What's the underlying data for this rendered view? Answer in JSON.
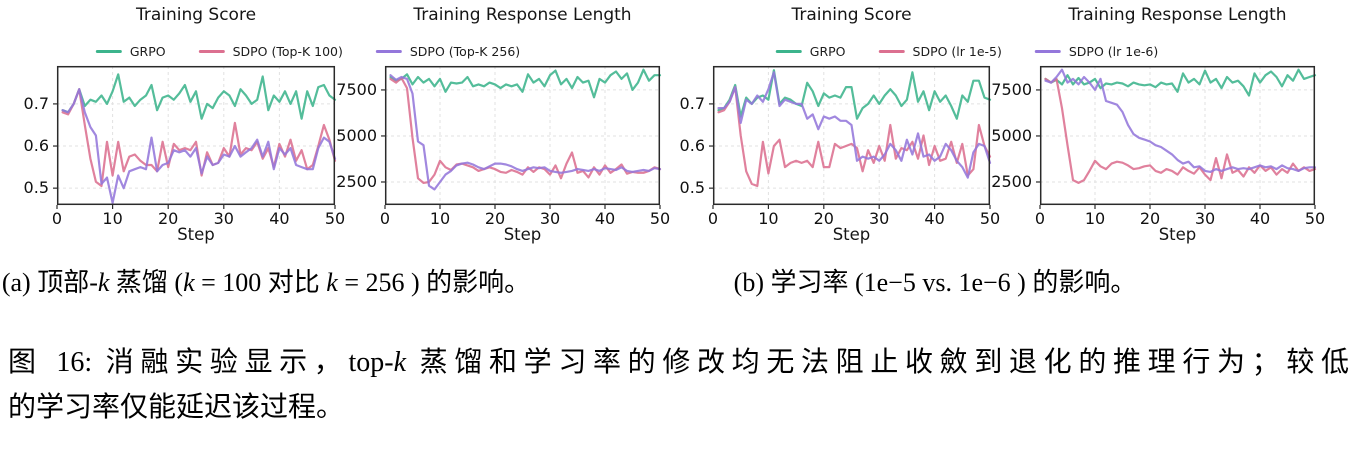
{
  "colors": {
    "grpo": "#3cb48c",
    "pink": "#dc7090",
    "purple": "#9477db",
    "grid": "#e2e2e2",
    "axis": "#2a2a2a"
  },
  "legends": [
    {
      "items": [
        {
          "label": "GRPO",
          "color": "grpo"
        },
        {
          "label": "SDPO (Top-K 100)",
          "color": "pink"
        },
        {
          "label": "SDPO (Top-K 256)",
          "color": "purple"
        }
      ]
    },
    {
      "items": [
        {
          "label": "GRPO",
          "color": "grpo"
        },
        {
          "label": "SDPO (lr 1e-5)",
          "color": "pink"
        },
        {
          "label": "SDPO (lr 1e-6)",
          "color": "purple"
        }
      ]
    }
  ],
  "chart_data": [
    {
      "type": "line",
      "title": "Training Score",
      "xlabel": "Step",
      "xlim": [
        0,
        50
      ],
      "ylim": [
        0.46,
        0.79
      ],
      "xticks": [
        0,
        10,
        20,
        30,
        40,
        50
      ],
      "yticks": [
        0.5,
        0.6,
        0.7
      ],
      "x_start": 1,
      "series": [
        {
          "name": "GRPO",
          "color": "grpo",
          "values": [
            0.685,
            0.68,
            0.7,
            0.735,
            0.695,
            0.71,
            0.705,
            0.72,
            0.7,
            0.73,
            0.77,
            0.705,
            0.715,
            0.695,
            0.71,
            0.72,
            0.745,
            0.685,
            0.715,
            0.72,
            0.71,
            0.725,
            0.745,
            0.705,
            0.73,
            0.665,
            0.7,
            0.69,
            0.715,
            0.73,
            0.72,
            0.695,
            0.735,
            0.72,
            0.7,
            0.71,
            0.765,
            0.685,
            0.72,
            0.705,
            0.73,
            0.7,
            0.73,
            0.665,
            0.73,
            0.695,
            0.74,
            0.745,
            0.72,
            0.71
          ]
        },
        {
          "name": "SDPO (Top-K 100)",
          "color": "pink",
          "values": [
            0.68,
            0.675,
            0.7,
            0.735,
            0.65,
            0.57,
            0.515,
            0.505,
            0.61,
            0.53,
            0.61,
            0.54,
            0.575,
            0.58,
            0.565,
            0.555,
            0.555,
            0.54,
            0.61,
            0.55,
            0.605,
            0.59,
            0.595,
            0.59,
            0.61,
            0.53,
            0.585,
            0.555,
            0.56,
            0.595,
            0.575,
            0.655,
            0.58,
            0.595,
            0.59,
            0.61,
            0.57,
            0.595,
            0.55,
            0.605,
            0.575,
            0.615,
            0.565,
            0.59,
            0.545,
            0.555,
            0.6,
            0.65,
            0.615,
            0.565
          ]
        },
        {
          "name": "SDPO (Top-K 256)",
          "color": "purple",
          "values": [
            0.685,
            0.68,
            0.7,
            0.735,
            0.68,
            0.645,
            0.625,
            0.51,
            0.525,
            0.465,
            0.53,
            0.5,
            0.54,
            0.545,
            0.55,
            0.545,
            0.62,
            0.54,
            0.555,
            0.56,
            0.59,
            0.585,
            0.59,
            0.575,
            0.595,
            0.535,
            0.575,
            0.555,
            0.56,
            0.58,
            0.575,
            0.6,
            0.575,
            0.585,
            0.595,
            0.615,
            0.575,
            0.61,
            0.545,
            0.595,
            0.58,
            0.595,
            0.555,
            0.55,
            0.545,
            0.545,
            0.595,
            0.62,
            0.61,
            0.57
          ]
        }
      ]
    },
    {
      "type": "line",
      "title": "Training Response Length",
      "xlabel": "Step",
      "xlim": [
        0,
        50
      ],
      "ylim": [
        1250,
        8800
      ],
      "xticks": [
        0,
        10,
        20,
        30,
        40,
        50
      ],
      "yticks": [
        2500,
        5000,
        7500
      ],
      "x_start": 1,
      "series": [
        {
          "name": "GRPO",
          "color": "grpo",
          "values": [
            8200,
            8000,
            8100,
            8350,
            7800,
            8200,
            7900,
            8100,
            7700,
            8100,
            7400,
            7900,
            7850,
            7900,
            8200,
            7700,
            7800,
            7700,
            7900,
            7800,
            7600,
            7800,
            7700,
            7800,
            7400,
            8350,
            7900,
            8100,
            7700,
            8300,
            8550,
            7800,
            8100,
            7600,
            8200,
            7900,
            8000,
            7100,
            8100,
            7900,
            8300,
            8500,
            8100,
            8400,
            7500,
            7900,
            8600,
            8000,
            8300,
            8300
          ]
        },
        {
          "name": "SDPO (Top-K 100)",
          "color": "pink",
          "values": [
            8100,
            7900,
            8150,
            7600,
            4900,
            2700,
            2450,
            2500,
            2900,
            3650,
            3300,
            3150,
            3450,
            3500,
            3400,
            3300,
            3100,
            3200,
            3300,
            3200,
            3050,
            3000,
            3150,
            3050,
            2900,
            3300,
            3050,
            3300,
            3200,
            2900,
            3400,
            2700,
            3500,
            4100,
            3000,
            3100,
            2750,
            3300,
            2900,
            3400,
            3000,
            3200,
            3450,
            2950,
            3050,
            3000,
            3000,
            3100,
            3300,
            3200
          ]
        },
        {
          "name": "SDPO (Top-K 256)",
          "color": "purple",
          "values": [
            8300,
            8050,
            8200,
            8100,
            7300,
            4700,
            4500,
            2300,
            2100,
            2500,
            2900,
            3100,
            3400,
            3500,
            3550,
            3450,
            3300,
            3200,
            3350,
            3500,
            3500,
            3450,
            3350,
            3200,
            3100,
            3200,
            3300,
            3250,
            3300,
            3100,
            3050,
            3000,
            3050,
            3100,
            3200,
            3150,
            3100,
            3200,
            3100,
            3250,
            3200,
            3150,
            3300,
            3100,
            3050,
            3100,
            3150,
            3100,
            3250,
            3200
          ]
        }
      ]
    },
    {
      "type": "line",
      "title": "Training Score",
      "xlabel": "Step",
      "xlim": [
        0,
        50
      ],
      "ylim": [
        0.46,
        0.79
      ],
      "xticks": [
        0,
        10,
        20,
        30,
        40,
        50
      ],
      "yticks": [
        0.5,
        0.6,
        0.7
      ],
      "x_start": 1,
      "series": [
        {
          "name": "GRPO",
          "color": "grpo",
          "values": [
            0.685,
            0.69,
            0.71,
            0.745,
            0.67,
            0.715,
            0.7,
            0.715,
            0.72,
            0.71,
            0.78,
            0.7,
            0.715,
            0.71,
            0.7,
            0.695,
            0.75,
            0.73,
            0.695,
            0.725,
            0.715,
            0.72,
            0.715,
            0.74,
            0.74,
            0.665,
            0.69,
            0.7,
            0.72,
            0.7,
            0.72,
            0.735,
            0.72,
            0.695,
            0.71,
            0.775,
            0.705,
            0.73,
            0.685,
            0.73,
            0.705,
            0.72,
            0.695,
            0.665,
            0.72,
            0.705,
            0.755,
            0.755,
            0.715,
            0.71
          ]
        },
        {
          "name": "SDPO (lr 1e-5)",
          "color": "pink",
          "values": [
            0.68,
            0.685,
            0.705,
            0.74,
            0.625,
            0.54,
            0.51,
            0.505,
            0.61,
            0.535,
            0.6,
            0.615,
            0.55,
            0.56,
            0.565,
            0.56,
            0.565,
            0.55,
            0.61,
            0.55,
            0.55,
            0.605,
            0.595,
            0.6,
            0.605,
            0.595,
            0.54,
            0.59,
            0.56,
            0.6,
            0.565,
            0.65,
            0.57,
            0.595,
            0.59,
            0.61,
            0.57,
            0.625,
            0.555,
            0.6,
            0.565,
            0.57,
            0.61,
            0.56,
            0.605,
            0.53,
            0.545,
            0.65,
            0.6,
            0.575
          ]
        },
        {
          "name": "SDPO (lr 1e-6)",
          "color": "purple",
          "values": [
            0.69,
            0.69,
            0.705,
            0.74,
            0.655,
            0.71,
            0.7,
            0.72,
            0.705,
            0.735,
            0.775,
            0.695,
            0.71,
            0.705,
            0.7,
            0.7,
            0.665,
            0.675,
            0.64,
            0.67,
            0.665,
            0.67,
            0.66,
            0.66,
            0.65,
            0.565,
            0.575,
            0.57,
            0.575,
            0.565,
            0.58,
            0.605,
            0.59,
            0.565,
            0.615,
            0.58,
            0.63,
            0.575,
            0.58,
            0.565,
            0.575,
            0.605,
            0.59,
            0.565,
            0.55,
            0.525,
            0.585,
            0.605,
            0.6,
            0.56
          ]
        }
      ]
    },
    {
      "type": "line",
      "title": "Training Response Length",
      "xlabel": "Step",
      "xlim": [
        0,
        50
      ],
      "ylim": [
        1250,
        8800
      ],
      "xticks": [
        0,
        10,
        20,
        30,
        40,
        50
      ],
      "yticks": [
        2500,
        5000,
        7500
      ],
      "x_start": 1,
      "series": [
        {
          "name": "GRPO",
          "color": "grpo",
          "values": [
            8100,
            7900,
            8050,
            7800,
            8300,
            7800,
            8150,
            7800,
            7900,
            8100,
            7600,
            7850,
            7800,
            7900,
            7850,
            7700,
            7900,
            7800,
            7750,
            7800,
            7650,
            7900,
            7800,
            7850,
            7400,
            8400,
            7900,
            8100,
            7800,
            8550,
            7900,
            8100,
            7600,
            8200,
            7900,
            8000,
            7700,
            7200,
            8400,
            7900,
            8300,
            8500,
            8200,
            7700,
            8300,
            8000,
            8600,
            8100,
            8200,
            8300
          ]
        },
        {
          "name": "SDPO (lr 1e-5)",
          "color": "pink",
          "values": [
            8100,
            7900,
            8100,
            6500,
            4500,
            2600,
            2450,
            2600,
            3100,
            3650,
            3350,
            3200,
            3500,
            3600,
            3550,
            3400,
            3200,
            3250,
            3350,
            3400,
            3100,
            3000,
            3200,
            3100,
            2900,
            3300,
            3100,
            2950,
            3300,
            2900,
            2600,
            3800,
            2700,
            4000,
            3000,
            3150,
            2800,
            3300,
            3000,
            3400,
            3100,
            3300,
            2900,
            3200,
            3000,
            3500,
            3100,
            3300,
            3100,
            3200
          ]
        },
        {
          "name": "SDPO (lr 1e-6)",
          "color": "purple",
          "values": [
            8000,
            7900,
            8200,
            8600,
            7900,
            8100,
            7800,
            8200,
            7900,
            7500,
            8100,
            6900,
            6800,
            6700,
            6300,
            5600,
            5100,
            4900,
            4800,
            4700,
            4500,
            4400,
            4200,
            4000,
            3700,
            3500,
            3600,
            3300,
            3350,
            3100,
            3050,
            3200,
            3100,
            3200,
            3300,
            3200,
            3250,
            3200,
            3300,
            3400,
            3300,
            3350,
            3200,
            3400,
            3250,
            3200,
            3100,
            3250,
            3300,
            3300
          ]
        }
      ]
    }
  ],
  "figure": {
    "caption_a_segs": [
      "(a) 顶部-",
      "k",
      " 蒸馏 (",
      "k",
      " = 100 对比 ",
      "k",
      " = 256 ) 的影响。"
    ],
    "caption_b": "(b) 学习率 (1e−5 vs. 1e−6 ) 的影响。",
    "fig_caption_line1_segs": [
      "图 16: 消融实验显示，top-",
      "k",
      " 蒸馏和学习率的修改均无法阻止收斂到退化的推理行为；较低"
    ],
    "fig_caption_line2": "的学习率仅能延迟该过程。"
  }
}
